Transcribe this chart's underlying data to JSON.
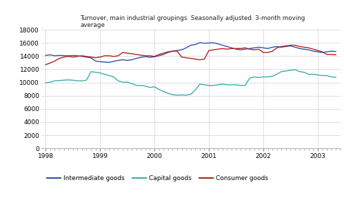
{
  "title": "Turnover, main industrial groupings. Seasonally adjusted. 3-month moving\naverage",
  "ylim": [
    0,
    18000
  ],
  "yticks": [
    0,
    2000,
    4000,
    6000,
    8000,
    10000,
    12000,
    14000,
    16000,
    18000
  ],
  "xlim": [
    1997.92,
    2003.42
  ],
  "xticks": [
    1998,
    1999,
    2000,
    2001,
    2002,
    2003
  ],
  "colors": {
    "intermediate": "#2e4fac",
    "capital": "#3aada8",
    "consumer": "#b02020"
  },
  "legend_labels": [
    "Intermediate goods",
    "Capital goods",
    "Consumer goods"
  ],
  "background": "#ffffff",
  "grid_color": "#d0d0d0",
  "intermediate_x": [
    1998.0,
    1998.083,
    1998.167,
    1998.25,
    1998.333,
    1998.417,
    1998.5,
    1998.583,
    1998.667,
    1998.75,
    1998.833,
    1998.917,
    1999.0,
    1999.083,
    1999.167,
    1999.25,
    1999.333,
    1999.417,
    1999.5,
    1999.583,
    1999.667,
    1999.75,
    1999.833,
    1999.917,
    2000.0,
    2000.083,
    2000.167,
    2000.25,
    2000.333,
    2000.417,
    2000.5,
    2000.583,
    2000.667,
    2000.75,
    2000.833,
    2000.917,
    2001.0,
    2001.083,
    2001.167,
    2001.25,
    2001.333,
    2001.417,
    2001.5,
    2001.583,
    2001.667,
    2001.75,
    2001.833,
    2001.917,
    2002.0,
    2002.083,
    2002.167,
    2002.25,
    2002.333,
    2002.417,
    2002.5,
    2002.583,
    2002.667,
    2002.75,
    2002.833,
    2002.917,
    2003.0,
    2003.083,
    2003.167,
    2003.25,
    2003.333
  ],
  "intermediate_y": [
    14100,
    14200,
    14050,
    14100,
    14080,
    14050,
    14100,
    14050,
    13950,
    13850,
    13750,
    13250,
    13150,
    13100,
    13050,
    13200,
    13350,
    13450,
    13350,
    13450,
    13650,
    13820,
    13920,
    13820,
    13900,
    14050,
    14250,
    14550,
    14750,
    14850,
    14950,
    15250,
    15650,
    15750,
    16050,
    15950,
    15980,
    16020,
    15850,
    15650,
    15450,
    15250,
    15050,
    14950,
    15050,
    15150,
    15250,
    15350,
    15250,
    15150,
    15350,
    15450,
    15350,
    15450,
    15550,
    15350,
    15150,
    15050,
    14950,
    14750,
    14650,
    14550,
    14650,
    14750,
    14700
  ],
  "capital_x": [
    1998.0,
    1998.083,
    1998.167,
    1998.25,
    1998.333,
    1998.417,
    1998.5,
    1998.583,
    1998.667,
    1998.75,
    1998.833,
    1998.917,
    1999.0,
    1999.083,
    1999.167,
    1999.25,
    1999.333,
    1999.417,
    1999.5,
    1999.583,
    1999.667,
    1999.75,
    1999.833,
    1999.917,
    2000.0,
    2000.083,
    2000.167,
    2000.25,
    2000.333,
    2000.417,
    2000.5,
    2000.583,
    2000.667,
    2000.75,
    2000.833,
    2000.917,
    2001.0,
    2001.083,
    2001.167,
    2001.25,
    2001.333,
    2001.417,
    2001.5,
    2001.583,
    2001.667,
    2001.75,
    2001.833,
    2001.917,
    2002.0,
    2002.083,
    2002.167,
    2002.25,
    2002.333,
    2002.417,
    2002.5,
    2002.583,
    2002.667,
    2002.75,
    2002.833,
    2002.917,
    2003.0,
    2003.083,
    2003.167,
    2003.25,
    2003.333
  ],
  "capital_y": [
    9950,
    10050,
    10250,
    10300,
    10350,
    10400,
    10350,
    10250,
    10250,
    10350,
    11650,
    11550,
    11450,
    11250,
    11050,
    10850,
    10250,
    10050,
    10050,
    9850,
    9550,
    9550,
    9450,
    9250,
    9350,
    8950,
    8650,
    8350,
    8150,
    8080,
    8120,
    8070,
    8220,
    8850,
    9750,
    9650,
    9550,
    9550,
    9650,
    9750,
    9650,
    9650,
    9650,
    9550,
    9550,
    10650,
    10850,
    10750,
    10850,
    10850,
    10950,
    11250,
    11650,
    11750,
    11850,
    11950,
    11650,
    11550,
    11250,
    11250,
    11150,
    11050,
    11050,
    10850,
    10800
  ],
  "consumer_x": [
    1998.0,
    1998.083,
    1998.167,
    1998.25,
    1998.333,
    1998.417,
    1998.5,
    1998.583,
    1998.667,
    1998.75,
    1998.833,
    1998.917,
    1999.0,
    1999.083,
    1999.167,
    1999.25,
    1999.333,
    1999.417,
    1999.5,
    1999.583,
    1999.667,
    1999.75,
    1999.833,
    1999.917,
    2000.0,
    2000.083,
    2000.167,
    2000.25,
    2000.333,
    2000.417,
    2000.5,
    2000.583,
    2000.667,
    2000.75,
    2000.833,
    2000.917,
    2001.0,
    2001.083,
    2001.167,
    2001.25,
    2001.333,
    2001.417,
    2001.5,
    2001.583,
    2001.667,
    2001.75,
    2001.833,
    2001.917,
    2002.0,
    2002.083,
    2002.167,
    2002.25,
    2002.333,
    2002.417,
    2002.5,
    2002.583,
    2002.667,
    2002.75,
    2002.833,
    2002.917,
    2003.0,
    2003.083,
    2003.167,
    2003.25,
    2003.333
  ],
  "consumer_y": [
    12700,
    12950,
    13250,
    13650,
    13850,
    13950,
    13850,
    13950,
    14050,
    13950,
    13850,
    13750,
    13850,
    14050,
    14050,
    13950,
    14050,
    14550,
    14450,
    14350,
    14250,
    14150,
    14050,
    14050,
    13950,
    14250,
    14450,
    14650,
    14750,
    14750,
    13850,
    13750,
    13650,
    13550,
    13450,
    13550,
    14850,
    14950,
    15050,
    15150,
    15050,
    15150,
    15150,
    15150,
    15250,
    15050,
    14950,
    15050,
    14550,
    14550,
    14750,
    15250,
    15450,
    15550,
    15650,
    15650,
    15450,
    15350,
    15250,
    15050,
    14850,
    14650,
    14250,
    14250,
    14200
  ]
}
